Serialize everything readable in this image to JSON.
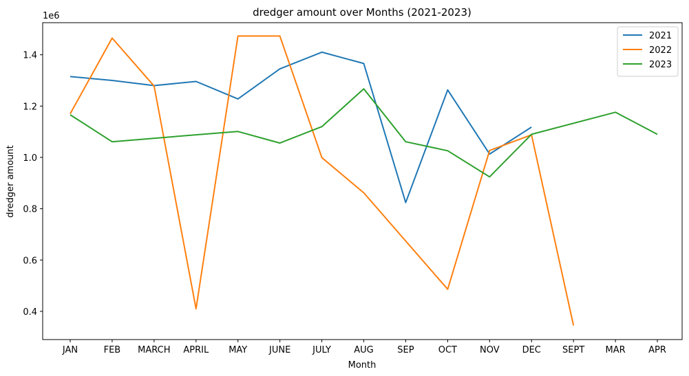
{
  "chart_data": {
    "type": "line",
    "title": "dredger amount over Months (2021-2023)",
    "xlabel": "Month",
    "ylabel": "dredger amount",
    "y_multiplier_label": "1e6",
    "categories": [
      "JAN",
      "FEB",
      "MARCH",
      "APRIL",
      "MAY",
      "JUNE",
      "JULY",
      "AUG",
      "SEP",
      "OCT",
      "NOV",
      "DEC",
      "SEPT",
      "MAR",
      "APR"
    ],
    "ylim": [
      0.29,
      1.525
    ],
    "yticks": [
      0.4,
      0.6,
      0.8,
      1.0,
      1.2,
      1.4
    ],
    "ytick_labels": [
      "0.4",
      "0.6",
      "0.8",
      "1.0",
      "1.2",
      "1.4"
    ],
    "grid": false,
    "legend_position": "top-right",
    "series": [
      {
        "name": "2021",
        "color": "#1f77b4",
        "points": [
          [
            "JAN",
            1.315
          ],
          [
            "FEB",
            1.3
          ],
          [
            "MARCH",
            1.28
          ],
          [
            "APRIL",
            1.296
          ],
          [
            "MAY",
            1.228
          ],
          [
            "JUNE",
            1.345
          ],
          [
            "JULY",
            1.41
          ],
          [
            "AUG",
            1.366
          ],
          [
            "SEP",
            0.824
          ],
          [
            "OCT",
            1.263
          ],
          [
            "NOV",
            1.013
          ],
          [
            "DEC",
            1.118
          ]
        ]
      },
      {
        "name": "2022",
        "color": "#ff7f0e",
        "points": [
          [
            "JAN",
            1.17
          ],
          [
            "FEB",
            1.465
          ],
          [
            "MARCH",
            1.278
          ],
          [
            "APRIL",
            0.41
          ],
          [
            "MAY",
            1.473
          ],
          [
            "JUNE",
            1.473
          ],
          [
            "JULY",
            0.999
          ],
          [
            "AUG",
            0.862
          ],
          [
            "OCT",
            0.486
          ],
          [
            "NOV",
            1.027
          ],
          [
            "DEC",
            1.088
          ],
          [
            "SEPT",
            0.345
          ]
        ]
      },
      {
        "name": "2023",
        "color": "#2ca02c",
        "points": [
          [
            "JAN",
            1.166
          ],
          [
            "FEB",
            1.061
          ],
          [
            "APRIL",
            1.088
          ],
          [
            "MAY",
            1.101
          ],
          [
            "JUNE",
            1.056
          ],
          [
            "JULY",
            1.12
          ],
          [
            "AUG",
            1.267
          ],
          [
            "SEP",
            1.061
          ],
          [
            "OCT",
            1.026
          ],
          [
            "NOV",
            0.924
          ],
          [
            "DEC",
            1.09
          ],
          [
            "MAR",
            1.176
          ],
          [
            "APR",
            1.09
          ]
        ]
      }
    ]
  }
}
